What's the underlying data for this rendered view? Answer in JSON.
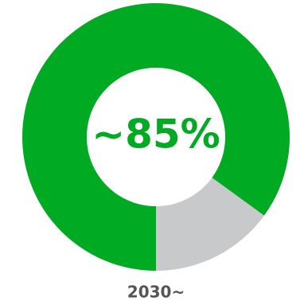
{
  "chart_data": {
    "type": "pie",
    "variant": "donut",
    "slices": [
      {
        "value": 85,
        "color": "#00AA22"
      },
      {
        "value": 15,
        "color": "#C8C9CB"
      }
    ],
    "center_label": "~85%",
    "center_label_color": "#00AA22",
    "category_label": "2030~",
    "category_label_color": "#555555"
  }
}
